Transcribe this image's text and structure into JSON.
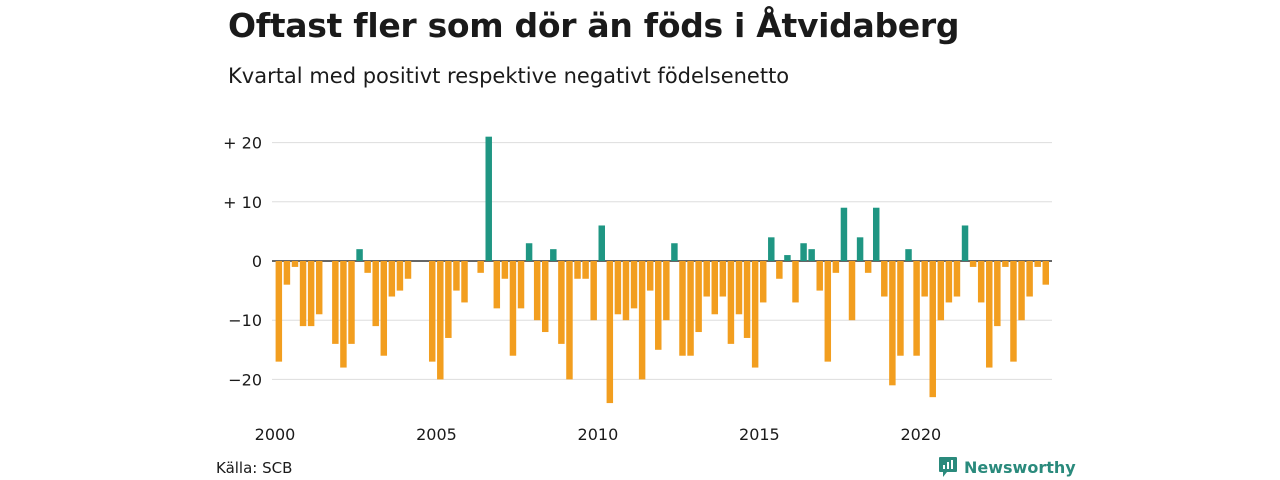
{
  "title": "Oftast fler som dör än föds i Åtvidaberg",
  "subtitle": "Kvartal med positivt respektive negativt födelsenetto",
  "source": "Källa: SCB",
  "brand": {
    "name": "Newsworthy",
    "icon": "newsworthy-logo-icon"
  },
  "colors": {
    "positive": "#1f9683",
    "negative": "#f29e1f",
    "grid": "#dddddd",
    "zero": "#333333"
  },
  "chart_data": {
    "type": "bar",
    "xlabel": "",
    "ylabel": "",
    "ylim": [
      -25,
      22
    ],
    "grid": true,
    "y_ticks": [
      {
        "value": 20,
        "label": "+ 20"
      },
      {
        "value": 10,
        "label": "+ 10"
      },
      {
        "value": 0,
        "label": "0"
      },
      {
        "value": -10,
        "label": "−10"
      },
      {
        "value": -20,
        "label": "−20"
      }
    ],
    "x_ticks": [
      {
        "value": 2000,
        "label": "2000"
      },
      {
        "value": 2005,
        "label": "2005"
      },
      {
        "value": 2010,
        "label": "2010"
      },
      {
        "value": 2015,
        "label": "2015"
      },
      {
        "value": 2020,
        "label": "2020"
      }
    ],
    "start_year": 2000,
    "quarters_per_year": 4,
    "values": [
      -17,
      -4,
      -1,
      -11,
      -11,
      -9,
      0,
      -14,
      -18,
      -14,
      2,
      -2,
      -11,
      -16,
      -6,
      -5,
      -3,
      0,
      0,
      -17,
      -20,
      -13,
      -5,
      -7,
      0,
      -2,
      21,
      -8,
      -3,
      -16,
      -8,
      3,
      -10,
      -12,
      2,
      -14,
      -20,
      -3,
      -3,
      -10,
      6,
      -24,
      -9,
      -10,
      -8,
      -20,
      -5,
      -15,
      -10,
      3,
      -16,
      -16,
      -12,
      -6,
      -9,
      -6,
      -14,
      -9,
      -13,
      -18,
      -7,
      4,
      -3,
      1,
      -7,
      3,
      2,
      -5,
      -17,
      -2,
      9,
      -10,
      4,
      -2,
      9,
      -6,
      -21,
      -16,
      2,
      -16,
      -6,
      -23,
      -10,
      -7,
      -6,
      6,
      -1,
      -7,
      -18,
      -11,
      -1,
      -17,
      -10,
      -6,
      -1,
      -4
    ]
  }
}
